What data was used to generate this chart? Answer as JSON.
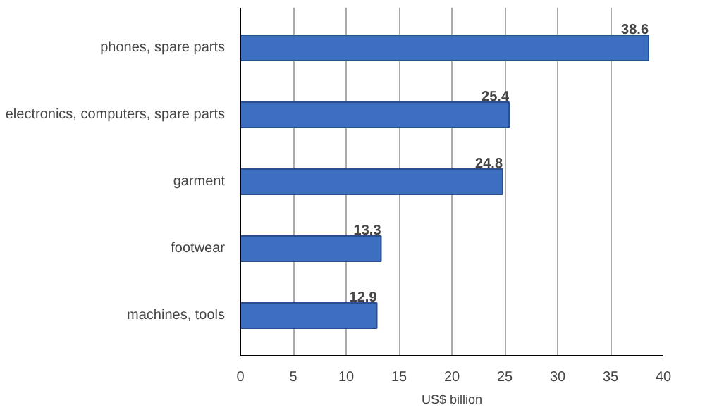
{
  "chart_data": {
    "type": "bar",
    "orientation": "horizontal",
    "xlabel": "US$ billion",
    "categories": [
      "phones, spare parts",
      "electronics, computers, spare parts",
      "garment",
      "footwear",
      "machines, tools"
    ],
    "values": [
      38.6,
      25.4,
      24.8,
      13.3,
      12.9
    ],
    "color": "#3d6fc0",
    "xlim": [
      0,
      40
    ],
    "xticks": [
      0,
      5,
      10,
      15,
      20,
      25,
      30,
      35,
      40
    ],
    "grid": "x",
    "data_labels": true
  }
}
